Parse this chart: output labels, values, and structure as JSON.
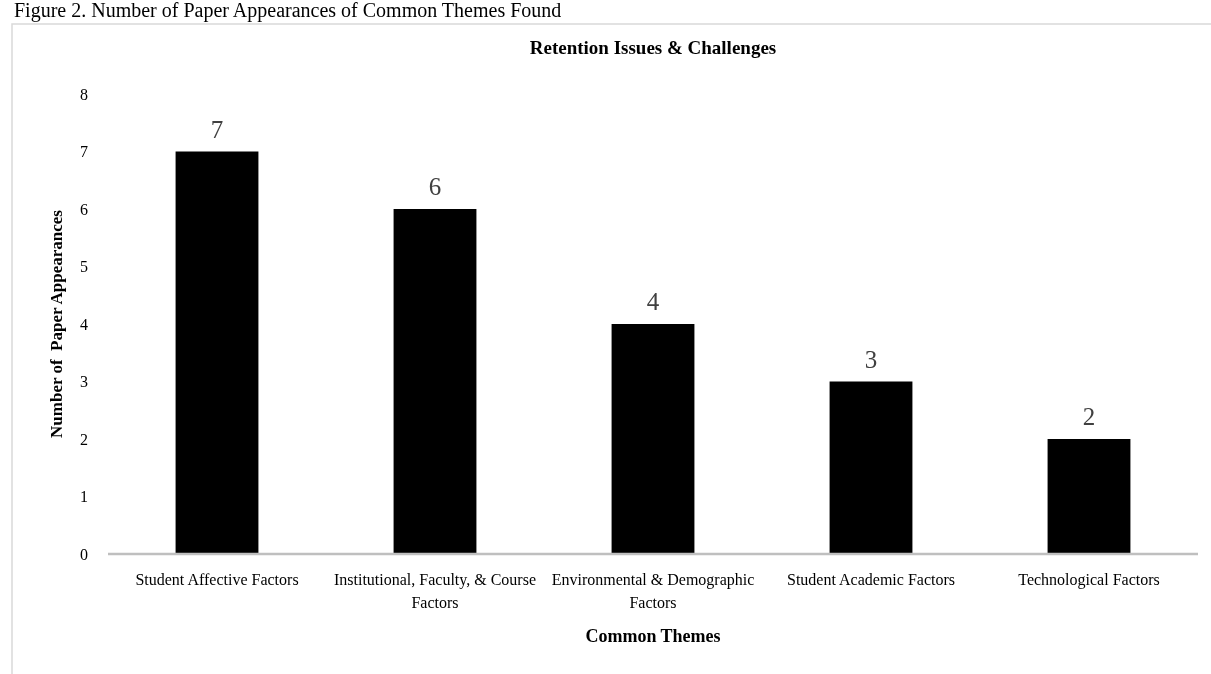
{
  "chart_data": {
    "type": "bar",
    "title": "Retention Issues & Challenges",
    "xlabel": "Common Themes",
    "ylabel": "Number of  Paper Appearances",
    "annotations": [
      "Figure 2. Number of Paper Appearances of Common Themes Found"
    ],
    "categories": [
      "Student Affective Factors",
      "Institutional, Faculty, & Course Factors",
      "Environmental & Demographic Factors",
      "Student Academic Factors",
      "Technological Factors"
    ],
    "values": [
      7,
      6,
      4,
      3,
      2
    ],
    "color": "#000000",
    "ylim": [
      0,
      8
    ],
    "yticks": [
      0,
      1,
      2,
      3,
      4,
      5,
      6,
      7,
      8
    ],
    "grid": false,
    "data_labels": true
  }
}
